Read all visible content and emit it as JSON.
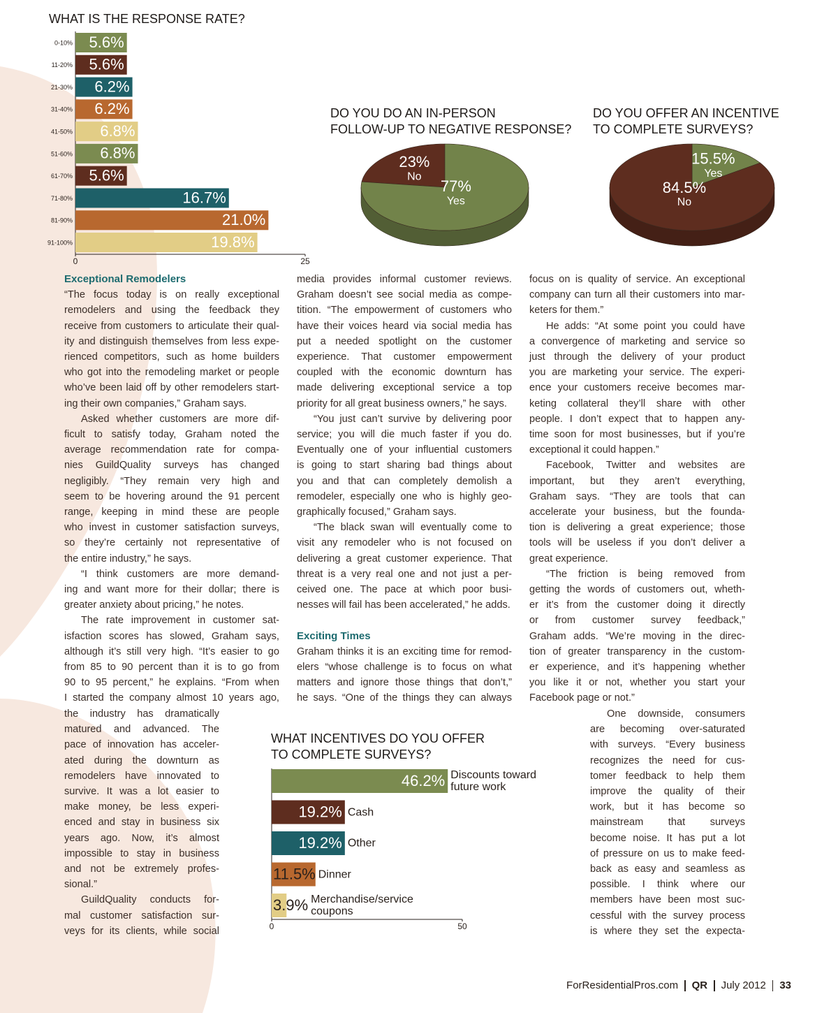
{
  "chart_data": [
    {
      "type": "bar",
      "title": [
        "WHAT IS THE RESPONSE RATE?"
      ],
      "categories": [
        "0-10%",
        "11-20%",
        "21-30%",
        "31-40%",
        "41-50%",
        "51-60%",
        "61-70%",
        "71-80%",
        "81-90%",
        "91-100%"
      ],
      "values": [
        5.6,
        5.6,
        6.2,
        6.2,
        6.8,
        6.8,
        5.6,
        16.7,
        21.0,
        19.8
      ],
      "value_labels": [
        "5.6%",
        "5.6%",
        "6.2%",
        "6.2%",
        "6.8%",
        "6.8%",
        "5.6%",
        "16.7%",
        "21.0%",
        "19.8%"
      ],
      "colors": [
        "#7b8b50",
        "#5e2d1f",
        "#1e6068",
        "#b8682f",
        "#e2cd86",
        "#7b8b50",
        "#5e2d1f",
        "#1e6068",
        "#b8682f",
        "#e2cd86"
      ],
      "xlim": [
        0,
        25
      ],
      "xticks": [
        0,
        25
      ]
    },
    {
      "type": "pie",
      "title": [
        "DO YOU DO AN IN-PERSON",
        "FOLLOW-UP TO NEGATIVE RESPONSE?"
      ],
      "categories": [
        "No",
        "Yes"
      ],
      "values": [
        23,
        77
      ],
      "value_labels": [
        "23%",
        "77%"
      ],
      "colors": [
        "#5e2d1f",
        "#72834a"
      ]
    },
    {
      "type": "pie",
      "title": [
        "DO YOU OFFER AN INCENTIVE",
        "TO COMPLETE SURVEYS?"
      ],
      "categories": [
        "Yes",
        "No"
      ],
      "values": [
        15.5,
        84.5
      ],
      "value_labels": [
        "15.5%",
        "84.5%"
      ],
      "colors": [
        "#72834a",
        "#5e2d1f"
      ]
    },
    {
      "type": "bar",
      "title": [
        "WHAT INCENTIVES DO YOU OFFER",
        "TO COMPLETE SURVEYS?"
      ],
      "categories": [
        "Discounts toward future work",
        "Cash",
        "Other",
        "Dinner",
        "Merchandise/service coupons"
      ],
      "values": [
        46.2,
        19.2,
        19.2,
        11.5,
        3.9
      ],
      "value_labels": [
        "46.2%",
        "19.2%",
        "19.2%",
        "11.5%",
        "3.9%"
      ],
      "colors": [
        "#7b8b50",
        "#5e2d1f",
        "#1e6068",
        "#b8682f",
        "#e2cd86"
      ],
      "xlim": [
        0,
        50
      ],
      "xticks": [
        0,
        50
      ]
    }
  ],
  "article": {
    "columns": [
      {
        "blocks": [
          {
            "heading": "Exceptional Remodelers"
          },
          {
            "lines": [
              "“The focus today is on really exceptional",
              "remodelers and using the feedback they",
              "receive from customers to articulate their qual-",
              "ity and distinguish themselves from less expe-",
              "rienced competitors, such as home builders",
              "who got into the remodeling market or people",
              "who’ve been laid off by other remodelers start-",
              "ing their own companies,” Graham says."
            ]
          },
          {
            "lines": [
              "Asked whether customers are more dif-",
              "ficult to satisfy today, Graham noted the",
              "average recommendation rate for compa-",
              "nies GuildQuality surveys has changed",
              "negligibly. “They remain very high and",
              "seem to be hovering around the 91 percent",
              "range, keeping in mind these are people",
              "who invest in customer satisfaction surveys,",
              "so they’re certainly not representative of",
              "the entire industry,” he says."
            ]
          },
          {
            "lines": [
              "“I think customers are more demand-",
              "ing and want more for their dollar; there is",
              "greater anxiety about pricing,” he notes."
            ]
          },
          {
            "lines": [
              "The rate improvement in customer sat-",
              "isfaction scores has slowed, Graham says,",
              "although it’s still very high. “It’s easier to go",
              "from 85 to 90 percent than it is to go from",
              "90 to 95 percent,” he explains. “From when",
              "I started the company almost 10 years ago,"
            ]
          }
        ]
      },
      {
        "blocks": [
          {
            "lines": [
              "the industry has dramatically",
              "matured and advanced. The",
              "pace of innovation has acceler-",
              "ated during the downturn as",
              "remodelers have innovated to",
              "survive. It was a lot easier to",
              "make money, be less experi-",
              "enced and stay in business six",
              "years ago. Now, it’s almost",
              "impossible to stay in business",
              "and not be extremely profes-",
              "sional.”"
            ]
          },
          {
            "lines": [
              "GuildQuality conducts for-",
              "mal customer satisfaction sur-",
              "veys for its clients, while social"
            ]
          }
        ]
      },
      {
        "blocks": [
          {
            "lines": [
              "media provides informal customer reviews.",
              "Graham doesn’t see social media as compe-",
              "tition. “The empowerment of customers who",
              "have their voices heard via social media has",
              "put a needed spotlight on the customer",
              "experience. That customer empowerment",
              "coupled with the economic downturn has",
              "made delivering exceptional service a top",
              "priority for all great business owners,” he says."
            ]
          },
          {
            "lines": [
              "“You just can’t survive by delivering poor",
              "service; you will die much faster if you do.",
              "Eventually one of your influential customers",
              "is going to start sharing bad things about",
              "you and that can completely demolish a",
              "remodeler, especially one who is highly geo-",
              "graphically focused,” Graham says."
            ]
          },
          {
            "lines": [
              "“The black swan will eventually come to",
              "visit any remodeler who is not focused on",
              "delivering a great customer experience. That",
              "threat is a very real one and not just a per-",
              "ceived one. The pace at which poor busi-",
              "nesses will fail has been accelerated,” he adds."
            ]
          },
          {
            "heading": "Exciting Times"
          },
          {
            "lines": [
              "Graham thinks it is an exciting time for remod-",
              "elers “whose challenge is to focus on what",
              "matters and ignore those things that don’t,”",
              "he says. “One of the things they can always"
            ]
          }
        ]
      },
      {
        "blocks": [
          {
            "lines": [
              "focus on is quality of service. An exceptional",
              "company can turn all their customers into mar-",
              "keters for them.”"
            ]
          },
          {
            "lines": [
              "He adds: “At some point you could have",
              "a convergence of marketing and service so",
              "just through the delivery of your product",
              "you are marketing your service. The experi-",
              "ence your customers receive becomes mar-",
              "keting collateral they’ll share with other",
              "people. I don’t expect that to happen any-",
              "time soon for most businesses, but if you’re",
              "exceptional it could happen.”"
            ]
          },
          {
            "lines": [
              "Facebook, Twitter and websites are",
              "important, but they aren’t everything,",
              "Graham says. “They are tools that can",
              "accelerate your business, but the founda-",
              "tion is delivering a great experience; those",
              "tools will be useless if you don’t deliver a",
              "great experience."
            ]
          },
          {
            "lines": [
              "“The friction is being removed from",
              "getting the words of customers out, wheth-",
              "er it’s from the customer doing it directly",
              "or from customer survey feedback,”",
              "Graham adds. “We’re moving in the direc-",
              "tion of greater transparency in the custom-",
              "er experience, and it’s happening whether",
              "you like it or not, whether you start your",
              "Facebook page or not.”"
            ]
          }
        ]
      },
      {
        "blocks": [
          {
            "lines": [
              "One downside, consumers",
              "are becoming over-saturated",
              "with surveys. “Every business",
              "recognizes the need for cus-",
              "tomer feedback to help them",
              "improve the quality of their",
              "work, but it has become so",
              "mainstream that surveys",
              "become noise. It has put a lot",
              "of pressure on us to make feed-",
              "back as easy and seamless as",
              "possible. I think where our",
              "members have been most suc-",
              "cessful with the survey process",
              "is where they set the expecta-"
            ]
          }
        ]
      }
    ]
  },
  "footer": {
    "site": "ForResidentialPros.com",
    "brand": "QR",
    "issue": "July 2012",
    "page": "33"
  }
}
